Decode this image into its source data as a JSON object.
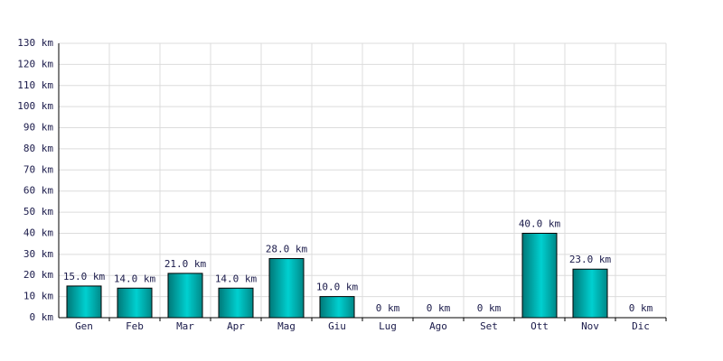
{
  "chart_data": {
    "type": "bar",
    "categories": [
      "Gen",
      "Feb",
      "Mar",
      "Apr",
      "Mag",
      "Giu",
      "Lug",
      "Ago",
      "Set",
      "Ott",
      "Nov",
      "Dic"
    ],
    "values": [
      15,
      14,
      21,
      14,
      28,
      10,
      0,
      0,
      0,
      40,
      23,
      0
    ],
    "value_labels": [
      "15.0 km",
      "14.0 km",
      "21.0 km",
      "14.0 km",
      "28.0 km",
      "10.0 km",
      "0 km",
      "0 km",
      "0 km",
      "40.0 km",
      "23.0 km",
      "0 km"
    ],
    "color": "#00d0d0",
    "ylim": [
      0,
      130
    ],
    "yticks": [
      {
        "value": 0,
        "label": "0 km"
      },
      {
        "value": 10,
        "label": "10 km"
      },
      {
        "value": 20,
        "label": "20 km"
      },
      {
        "value": 30,
        "label": "30 km"
      },
      {
        "value": 40,
        "label": "40 km"
      },
      {
        "value": 50,
        "label": "50 km"
      },
      {
        "value": 60,
        "label": "60 km"
      },
      {
        "value": 70,
        "label": "70 km"
      },
      {
        "value": 80,
        "label": "80 km"
      },
      {
        "value": 90,
        "label": "90 km"
      },
      {
        "value": 100,
        "label": "100 km"
      },
      {
        "value": 110,
        "label": "110 km"
      },
      {
        "value": 120,
        "label": "120 km"
      },
      {
        "value": 130,
        "label": "130 km"
      }
    ],
    "grid": true
  }
}
